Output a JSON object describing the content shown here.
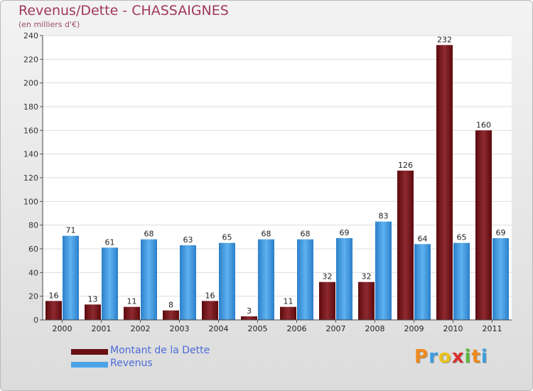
{
  "chart_data": {
    "type": "bar",
    "title": "Revenus/Dette - CHASSAIGNES",
    "subtitle": "(en milliers d'€)",
    "categories": [
      "2000",
      "2001",
      "2002",
      "2003",
      "2004",
      "2005",
      "2006",
      "2007",
      "2008",
      "2009",
      "2010",
      "2011"
    ],
    "series": [
      {
        "name": "Montant de la Dette",
        "color": "#7a1a1e",
        "values": [
          16,
          13,
          11,
          8,
          16,
          3,
          11,
          32,
          32,
          126,
          232,
          160
        ]
      },
      {
        "name": "Revenus",
        "color": "#4ba3e8",
        "values": [
          71,
          61,
          68,
          63,
          65,
          68,
          68,
          69,
          83,
          64,
          65,
          69
        ]
      }
    ],
    "ylim": [
      0,
      240
    ],
    "yticks": [
      0,
      20,
      40,
      60,
      80,
      100,
      120,
      140,
      160,
      180,
      200,
      220,
      240
    ],
    "grid": true,
    "legend_position": "bottom-left"
  },
  "brand": {
    "letters": [
      "P",
      "r",
      "o",
      "x",
      "i",
      "t",
      "i"
    ],
    "colors": [
      "#f08a1c",
      "#3a9ee0",
      "#e8c21a",
      "#d8302f",
      "#5fb83a",
      "#f08a1c",
      "#3a9ee0"
    ]
  }
}
